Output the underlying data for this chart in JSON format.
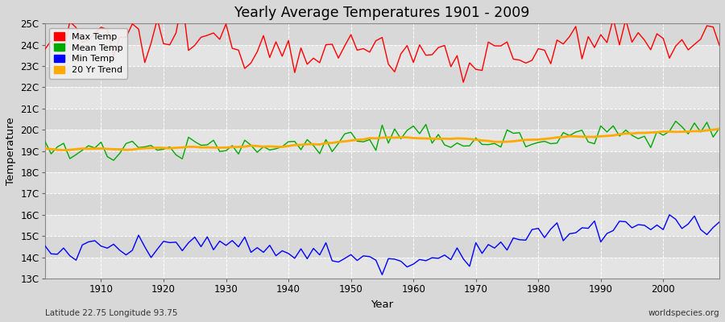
{
  "title": "Yearly Average Temperatures 1901 - 2009",
  "xlabel": "Year",
  "ylabel": "Temperature",
  "subtitle_left": "Latitude 22.75 Longitude 93.75",
  "subtitle_right": "worldspecies.org",
  "year_start": 1901,
  "year_end": 2009,
  "ytick_labels": [
    "13C",
    "14C",
    "15C",
    "16C",
    "17C",
    "18C",
    "19C",
    "20C",
    "21C",
    "22C",
    "23C",
    "24C",
    "25C"
  ],
  "ytick_values": [
    13,
    14,
    15,
    16,
    17,
    18,
    19,
    20,
    21,
    22,
    23,
    24,
    25
  ],
  "xtick_values": [
    1910,
    1920,
    1930,
    1940,
    1950,
    1960,
    1970,
    1980,
    1990,
    2000
  ],
  "ylim": [
    13,
    25
  ],
  "xlim": [
    1901,
    2009
  ],
  "legend": [
    {
      "label": "Max Temp",
      "color": "#ff0000"
    },
    {
      "label": "Mean Temp",
      "color": "#00aa00"
    },
    {
      "label": "Min Temp",
      "color": "#0000ff"
    },
    {
      "label": "20 Yr Trend",
      "color": "#ffaa00"
    }
  ],
  "bg_color": "#d8d8d8",
  "plot_bg_color": "#e8e8e8",
  "band_color_light": "#e4e4e4",
  "band_color_dark": "#d8d8d8",
  "grid_color": "#ffffff",
  "max_temp_base": 23.9,
  "mean_temp_base": 19.0,
  "min_temp_base": 14.2
}
